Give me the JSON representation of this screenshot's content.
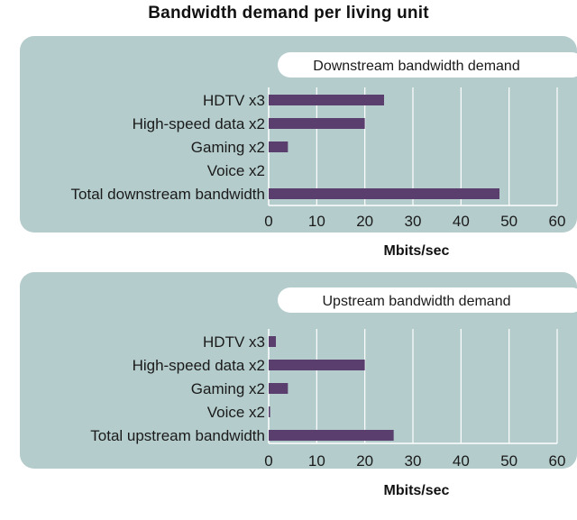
{
  "title": "Bandwidth demand per living unit",
  "colors": {
    "panel": "#b5cccc",
    "bar": "#5a3f6e",
    "grid": "#ffffff",
    "text": "#1a1a1a"
  },
  "chart_data": [
    {
      "type": "bar",
      "orientation": "horizontal",
      "title": "Downstream bandwidth demand",
      "categories": [
        "HDTV x3",
        "High-speed data x2",
        "Gaming x2",
        "Voice x2",
        "Total downstream bandwidth"
      ],
      "values": [
        24,
        20,
        4,
        0,
        48
      ],
      "xlabel": "Mbits/sec",
      "xticks": [
        "0",
        "10",
        "20",
        "30",
        "40",
        "50",
        "60"
      ],
      "xlim": [
        0,
        60
      ],
      "grid": true
    },
    {
      "type": "bar",
      "orientation": "horizontal",
      "title": "Upstream bandwidth demand",
      "categories": [
        "HDTV x3",
        "High-speed data x2",
        "Gaming x2",
        "Voice x2",
        "Total upstream bandwidth"
      ],
      "values": [
        1.5,
        20,
        4,
        0.3,
        26
      ],
      "xlabel": "Mbits/sec",
      "xticks": [
        "0",
        "10",
        "20",
        "30",
        "40",
        "50",
        "60"
      ],
      "xlim": [
        0,
        60
      ],
      "grid": true
    }
  ]
}
